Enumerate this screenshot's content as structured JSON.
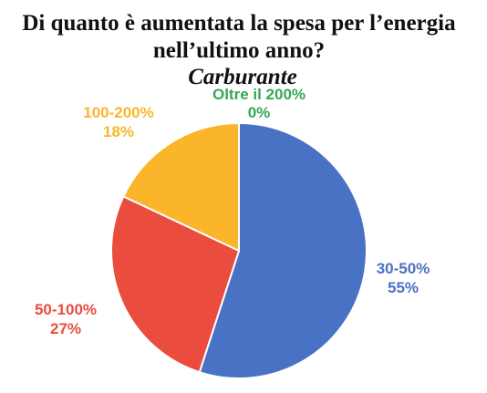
{
  "chart_data": {
    "type": "pie",
    "title_lines": [
      "Di quanto è aumentata la spesa per l’energia",
      "nell’ultimo anno?"
    ],
    "subtitle": "Carburante",
    "start_angle_deg": 0,
    "direction": "clockwise",
    "slices": [
      {
        "label": "30-50%",
        "value": 55,
        "value_label": "55%",
        "color": "#4a72c4"
      },
      {
        "label": "50-100%",
        "value": 27,
        "value_label": "27%",
        "color": "#ea4c3e"
      },
      {
        "label": "100-200%",
        "value": 18,
        "value_label": "18%",
        "color": "#fbb52b"
      },
      {
        "label": "Oltre il 200%",
        "value": 0,
        "value_label": "0%",
        "color": "#34a853"
      }
    ],
    "slice_border_color": "#ffffff"
  }
}
